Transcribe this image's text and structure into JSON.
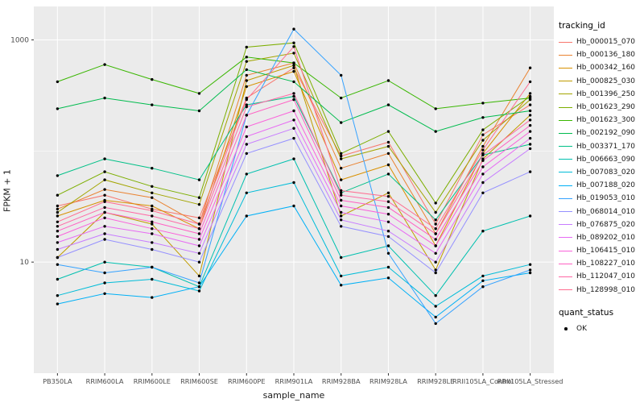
{
  "legend": {
    "tracking_title": "tracking_id",
    "quant_title": "quant_status",
    "quant_value": "OK"
  },
  "chart_data": {
    "type": "line",
    "title": "",
    "xlabel": "sample_name",
    "ylabel": "FPKM + 1",
    "y_scale": "log10",
    "ylim": [
      1,
      2000
    ],
    "y_major_ticks": [
      10,
      1000
    ],
    "y_minor_ticks": [
      100
    ],
    "grid": true,
    "legend_position": "right",
    "panel_background": "#EBEBEB",
    "gridline_color": "#FFFFFF",
    "point_color": "#000000",
    "tick_label_color": "#4D4D4D",
    "categories": [
      "PB350LA",
      "RRIM600LA",
      "RRIM600LE",
      "RRIM600SE",
      "RRIM600PE",
      "RRIM901LA",
      "RRIM928BA",
      "RRIM928LA",
      "RRIM928LE",
      "RRII105LA_Control",
      "RRII105LA_Stressed"
    ],
    "series": [
      {
        "name": "Hb_000015_070",
        "color": "#F8766D",
        "values": [
          32,
          40,
          30,
          25,
          300,
          560,
          90,
          120,
          22,
          140,
          260
        ]
      },
      {
        "name": "Hb_000136_180",
        "color": "#EA8331",
        "values": [
          30,
          45,
          38,
          22,
          480,
          620,
          70,
          95,
          18,
          110,
          560
        ]
      },
      {
        "name": "Hb_000342_160",
        "color": "#D89000",
        "values": [
          26,
          36,
          32,
          20,
          380,
          520,
          55,
          75,
          14,
          95,
          330
        ]
      },
      {
        "name": "Hb_000825_030",
        "color": "#C09B00",
        "values": [
          11,
          28,
          22,
          7.5,
          430,
          590,
          26,
          42,
          8.5,
          85,
          210
        ]
      },
      {
        "name": "Hb_001396_250",
        "color": "#A3A500",
        "values": [
          28,
          55,
          42,
          33,
          640,
          760,
          85,
          110,
          28,
          125,
          290
        ]
      },
      {
        "name": "Hb_001623_290",
        "color": "#7CAE00",
        "values": [
          40,
          65,
          48,
          38,
          860,
          940,
          95,
          150,
          34,
          155,
          310
        ]
      },
      {
        "name": "Hb_001623_300",
        "color": "#39B600",
        "values": [
          420,
          600,
          440,
          330,
          700,
          620,
          300,
          430,
          240,
          270,
          300
        ]
      },
      {
        "name": "Hb_002192_090",
        "color": "#00BB4E",
        "values": [
          240,
          300,
          260,
          230,
          540,
          420,
          180,
          260,
          150,
          200,
          230
        ]
      },
      {
        "name": "Hb_003371_170",
        "color": "#00C087",
        "values": [
          60,
          85,
          70,
          55,
          260,
          310,
          42,
          62,
          24,
          92,
          115
        ]
      },
      {
        "name": "Hb_006663_090",
        "color": "#00C0AF",
        "values": [
          7,
          10,
          9,
          6,
          62,
          85,
          11,
          14,
          5,
          19,
          26
        ]
      },
      {
        "name": "Hb_007083_020",
        "color": "#00BCD8",
        "values": [
          5,
          6.5,
          7,
          5.5,
          42,
          52,
          7.5,
          9,
          4,
          7.5,
          9.5
        ]
      },
      {
        "name": "Hb_007188_020",
        "color": "#00B0F6",
        "values": [
          4.2,
          5.2,
          4.8,
          6,
          26,
          32,
          6.2,
          7.2,
          3.2,
          6.8,
          8
        ]
      },
      {
        "name": "Hb_019053_010",
        "color": "#35A2FF",
        "values": [
          9.5,
          8,
          9,
          6.5,
          210,
          1250,
          480,
          12,
          2.8,
          6,
          8.5
        ]
      },
      {
        "name": "Hb_068014_010",
        "color": "#9590FF",
        "values": [
          11,
          16,
          13,
          10,
          95,
          130,
          21,
          17,
          8,
          42,
          65
        ]
      },
      {
        "name": "Hb_076875_020",
        "color": "#C77CFF",
        "values": [
          13,
          18,
          15,
          12,
          115,
          160,
          24,
          19,
          10,
          52,
          105
        ]
      },
      {
        "name": "Hb_089202_010",
        "color": "#E76BF3",
        "values": [
          15,
          21,
          18,
          14,
          135,
          190,
          28,
          23,
          12,
          62,
          130
        ]
      },
      {
        "name": "Hb_106415_010",
        "color": "#FA62DB",
        "values": [
          17,
          25,
          20,
          16,
          165,
          230,
          32,
          27,
          14,
          72,
          150
        ]
      },
      {
        "name": "Hb_108227_010",
        "color": "#FF61C3",
        "values": [
          19,
          28,
          23,
          18,
          210,
          290,
          36,
          31,
          16,
          82,
          170
        ]
      },
      {
        "name": "Hb_112047_010",
        "color": "#FF67A4",
        "values": [
          21,
          31,
          26,
          20,
          250,
          330,
          40,
          35,
          18,
          92,
          190
        ]
      },
      {
        "name": "Hb_128998_010",
        "color": "#FF6C90",
        "values": [
          23,
          35,
          29,
          22,
          290,
          870,
          44,
          39,
          20,
          102,
          420
        ]
      }
    ]
  }
}
